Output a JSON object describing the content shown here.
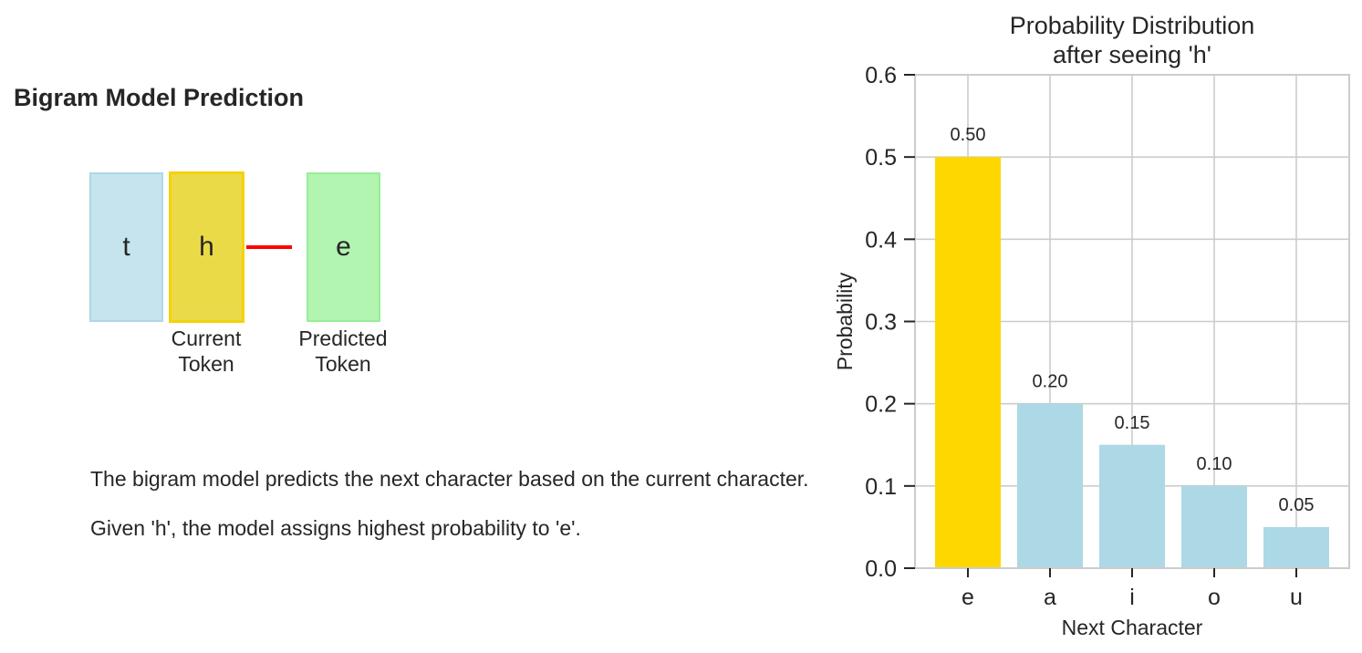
{
  "left_panel": {
    "title": "Bigram Model Prediction",
    "tokens": [
      {
        "char": "t",
        "label": ""
      },
      {
        "char": "h",
        "label": "Current\nToken"
      },
      {
        "char": "e",
        "label": "Predicted\nToken"
      }
    ],
    "current_label": [
      "Current",
      "Token"
    ],
    "predicted_label": [
      "Predicted",
      "Token"
    ],
    "description": [
      "The bigram model predicts the next character based on the current character.",
      "Given 'h', the model assigns highest probability to 'e'."
    ],
    "colors": {
      "context": "#add8e6",
      "current": "#ffd700",
      "predicted": "#90ee90",
      "arrow": "#ff0000"
    }
  },
  "chart_data": {
    "type": "bar",
    "title": [
      "Probability Distribution",
      "after seeing 'h'"
    ],
    "categories": [
      "e",
      "a",
      "i",
      "o",
      "u"
    ],
    "values": [
      0.5,
      0.2,
      0.15,
      0.1,
      0.05
    ],
    "value_labels": [
      "0.50",
      "0.20",
      "0.15",
      "0.10",
      "0.05"
    ],
    "bar_colors": [
      "#ffd700",
      "#add8e6",
      "#add8e6",
      "#add8e6",
      "#add8e6"
    ],
    "xlabel": "Next Character",
    "ylabel": "Probability",
    "ylim": [
      0,
      0.6
    ],
    "yticks": [
      0.0,
      0.1,
      0.2,
      0.3,
      0.4,
      0.5,
      0.6
    ],
    "ytick_labels": [
      "0.0",
      "0.1",
      "0.2",
      "0.3",
      "0.4",
      "0.5",
      "0.6"
    ],
    "grid": true
  }
}
